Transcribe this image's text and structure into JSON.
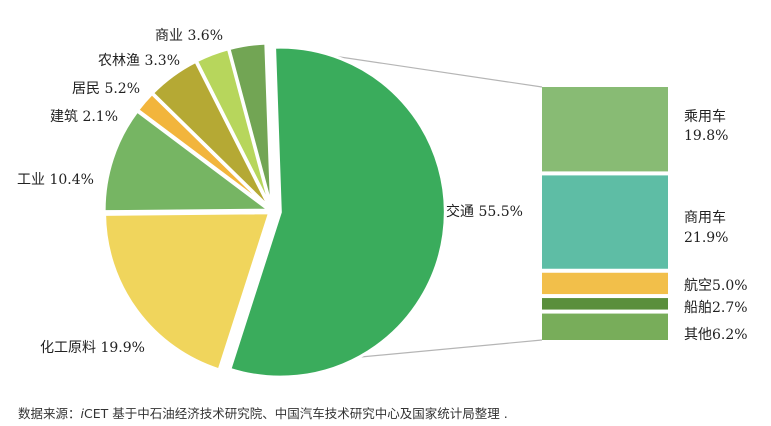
{
  "chart_data": {
    "type": "bar-of-pie",
    "pie": {
      "slices": [
        {
          "label": "交通",
          "value": 55.5,
          "color": "#3aac5c"
        },
        {
          "label": "化工原料",
          "value": 19.9,
          "color": "#f0d55c"
        },
        {
          "label": "工业",
          "value": 10.4,
          "color": "#76b563"
        },
        {
          "label": "建筑",
          "value": 2.1,
          "color": "#f2b53c"
        },
        {
          "label": "居民",
          "value": 5.2,
          "color": "#b5a934"
        },
        {
          "label": "农林渔",
          "value": 3.3,
          "color": "#b7d65c"
        },
        {
          "label": "商业",
          "value": 3.6,
          "color": "#72a554"
        }
      ],
      "labels_text": [
        "交通 55.5%",
        "化工原料 19.9%",
        "工业 10.4%",
        "建筑 2.1%",
        "居民 5.2%",
        "农林渔 3.3%",
        "商业 3.6%"
      ]
    },
    "breakdown_of": "交通",
    "bar": {
      "segments": [
        {
          "label": "乘用车",
          "value": 19.8,
          "color": "#88bb74"
        },
        {
          "label": "商用车",
          "value": 21.9,
          "color": "#5ebda5"
        },
        {
          "label": "航空",
          "value": 5.0,
          "color": "#f2bf4a"
        },
        {
          "label": "船舶",
          "value": 2.7,
          "color": "#5a8f3c"
        },
        {
          "label": "其他",
          "value": 6.2,
          "color": "#78ad5a"
        }
      ],
      "labels_line1": [
        "乘用车",
        "商用车",
        "航空5.0%",
        "船舶2.7%",
        "其他6.2%"
      ],
      "labels_line2": [
        "19.8%",
        "21.9%",
        "",
        "",
        ""
      ]
    }
  },
  "source": {
    "prefix": "数据来源：",
    "italic": "i",
    "org": "CET",
    "rest": " 基于中石油经济技术研究院、中国汽车技术研究中心及国家统计局整理 ."
  }
}
